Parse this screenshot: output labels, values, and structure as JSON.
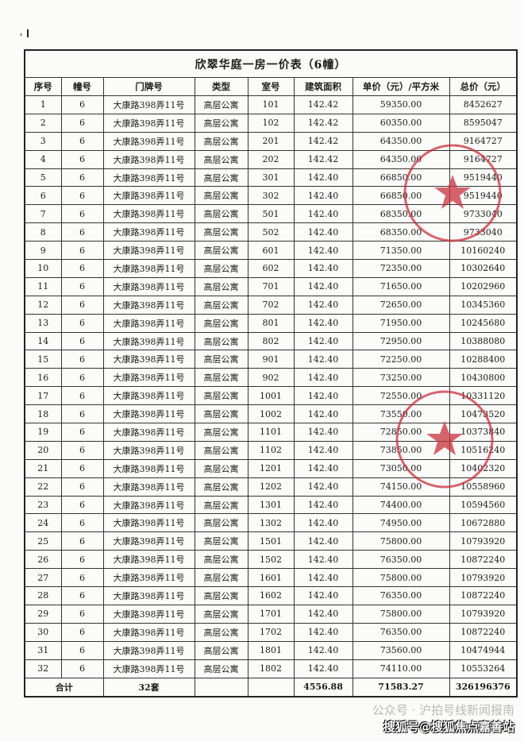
{
  "document": {
    "title": "欣翠华庭一房一价表（6幢）",
    "columns": [
      "序号",
      "幢号",
      "门牌号",
      "类型",
      "室号",
      "建筑面积",
      "单价（元）/平方米",
      "总价（元）"
    ],
    "rows": [
      [
        "1",
        "6",
        "大康路398弄11号",
        "高层公寓",
        "101",
        "142.42",
        "59350.00",
        "8452627"
      ],
      [
        "2",
        "6",
        "大康路398弄11号",
        "高层公寓",
        "102",
        "142.42",
        "60350.00",
        "8595047"
      ],
      [
        "3",
        "6",
        "大康路398弄11号",
        "高层公寓",
        "201",
        "142.42",
        "64350.00",
        "9164727"
      ],
      [
        "4",
        "6",
        "大康路398弄11号",
        "高层公寓",
        "202",
        "142.42",
        "64350.00",
        "9164727"
      ],
      [
        "5",
        "6",
        "大康路398弄11号",
        "高层公寓",
        "301",
        "142.40",
        "66850.00",
        "9519440"
      ],
      [
        "6",
        "6",
        "大康路398弄11号",
        "高层公寓",
        "302",
        "142.40",
        "66850.00",
        "9519440"
      ],
      [
        "7",
        "6",
        "大康路398弄11号",
        "高层公寓",
        "501",
        "142.40",
        "68350.00",
        "9733040"
      ],
      [
        "8",
        "6",
        "大康路398弄11号",
        "高层公寓",
        "502",
        "142.40",
        "68350.00",
        "9733040"
      ],
      [
        "9",
        "6",
        "大康路398弄11号",
        "高层公寓",
        "601",
        "142.40",
        "71350.00",
        "10160240"
      ],
      [
        "10",
        "6",
        "大康路398弄11号",
        "高层公寓",
        "602",
        "142.40",
        "72350.00",
        "10302640"
      ],
      [
        "11",
        "6",
        "大康路398弄11号",
        "高层公寓",
        "701",
        "142.40",
        "71650.00",
        "10202960"
      ],
      [
        "12",
        "6",
        "大康路398弄11号",
        "高层公寓",
        "702",
        "142.40",
        "72650.00",
        "10345360"
      ],
      [
        "13",
        "6",
        "大康路398弄11号",
        "高层公寓",
        "801",
        "142.40",
        "71950.00",
        "10245680"
      ],
      [
        "14",
        "6",
        "大康路398弄11号",
        "高层公寓",
        "802",
        "142.40",
        "72950.00",
        "10388080"
      ],
      [
        "15",
        "6",
        "大康路398弄11号",
        "高层公寓",
        "901",
        "142.40",
        "72250.00",
        "10288400"
      ],
      [
        "16",
        "6",
        "大康路398弄11号",
        "高层公寓",
        "902",
        "142.40",
        "73250.00",
        "10430800"
      ],
      [
        "17",
        "6",
        "大康路398弄11号",
        "高层公寓",
        "1001",
        "142.40",
        "72550.00",
        "10331120"
      ],
      [
        "18",
        "6",
        "大康路398弄11号",
        "高层公寓",
        "1002",
        "142.40",
        "73550.00",
        "10473520"
      ],
      [
        "19",
        "6",
        "大康路398弄11号",
        "高层公寓",
        "1101",
        "142.40",
        "72850.00",
        "10373840"
      ],
      [
        "20",
        "6",
        "大康路398弄11号",
        "高层公寓",
        "1102",
        "142.40",
        "73850.00",
        "10516240"
      ],
      [
        "21",
        "6",
        "大康路398弄11号",
        "高层公寓",
        "1201",
        "142.40",
        "73050.00",
        "10402320"
      ],
      [
        "22",
        "6",
        "大康路398弄11号",
        "高层公寓",
        "1202",
        "142.40",
        "74150.00",
        "10558960"
      ],
      [
        "23",
        "6",
        "大康路398弄11号",
        "高层公寓",
        "1301",
        "142.40",
        "74400.00",
        "10594560"
      ],
      [
        "24",
        "6",
        "大康路398弄11号",
        "高层公寓",
        "1302",
        "142.40",
        "74950.00",
        "10672880"
      ],
      [
        "25",
        "6",
        "大康路398弄11号",
        "高层公寓",
        "1501",
        "142.40",
        "75800.00",
        "10793920"
      ],
      [
        "26",
        "6",
        "大康路398弄11号",
        "高层公寓",
        "1502",
        "142.40",
        "76350.00",
        "10872240"
      ],
      [
        "27",
        "6",
        "大康路398弄11号",
        "高层公寓",
        "1601",
        "142.40",
        "75800.00",
        "10793920"
      ],
      [
        "28",
        "6",
        "大康路398弄11号",
        "高层公寓",
        "1602",
        "142.40",
        "76350.00",
        "10872240"
      ],
      [
        "29",
        "6",
        "大康路398弄11号",
        "高层公寓",
        "1701",
        "142.40",
        "75800.00",
        "10793920"
      ],
      [
        "30",
        "6",
        "大康路398弄11号",
        "高层公寓",
        "1702",
        "142.40",
        "76350.00",
        "10872240"
      ],
      [
        "31",
        "6",
        "大康路398弄11号",
        "高层公寓",
        "1801",
        "142.40",
        "73560.00",
        "10474944"
      ],
      [
        "32",
        "6",
        "大康路398弄11号",
        "高层公寓",
        "1802",
        "142.40",
        "74110.00",
        "10553264"
      ]
    ],
    "total": {
      "label": "合计",
      "units": "32套",
      "area": "4556.88",
      "avg_price": "71583.27",
      "total_price": "326196376"
    }
  },
  "watermark": {
    "wechat": "公众号 · 沪拍号线新闻报南",
    "sohu": "搜狐号@搜狐焦点嘉善站"
  },
  "colors": {
    "stamp": "#c8323c",
    "ink": "#1a1a1a"
  }
}
